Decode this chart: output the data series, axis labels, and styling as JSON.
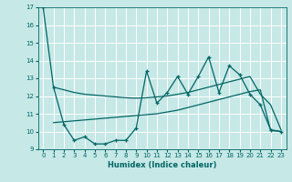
{
  "xlabel": "Humidex (Indice chaleur)",
  "xlim": [
    -0.5,
    23.5
  ],
  "ylim": [
    9,
    17
  ],
  "yticks": [
    9,
    10,
    11,
    12,
    13,
    14,
    15,
    16,
    17
  ],
  "xticks": [
    0,
    1,
    2,
    3,
    4,
    5,
    6,
    7,
    8,
    9,
    10,
    11,
    12,
    13,
    14,
    15,
    16,
    17,
    18,
    19,
    20,
    21,
    22,
    23
  ],
  "bg_color": "#c6e8e6",
  "grid_color": "#ffffff",
  "line_color": "#006666",
  "line1_x": [
    0,
    1,
    2,
    3,
    4,
    5,
    6,
    7,
    8,
    9,
    10,
    11,
    12,
    13,
    14,
    15,
    16,
    17,
    18,
    19,
    20,
    21,
    22,
    23
  ],
  "line1_y": [
    17.0,
    12.5,
    10.4,
    9.5,
    9.7,
    9.3,
    9.3,
    9.5,
    9.5,
    10.2,
    13.4,
    11.6,
    12.2,
    13.1,
    12.1,
    13.1,
    14.2,
    12.2,
    13.7,
    13.2,
    12.1,
    11.5,
    10.1,
    10.0
  ],
  "line2_x": [
    1,
    2,
    3,
    4,
    5,
    6,
    7,
    8,
    9,
    10,
    11,
    12,
    13,
    14,
    15,
    16,
    17,
    18,
    19,
    20,
    21,
    22,
    23
  ],
  "line2_y": [
    12.5,
    12.35,
    12.2,
    12.1,
    12.05,
    12.0,
    11.95,
    11.9,
    11.88,
    11.9,
    11.95,
    12.0,
    12.1,
    12.2,
    12.35,
    12.5,
    12.65,
    12.8,
    12.95,
    13.1,
    12.1,
    11.5,
    10.1
  ],
  "line3_x": [
    1,
    2,
    3,
    4,
    5,
    6,
    7,
    8,
    9,
    10,
    11,
    12,
    13,
    14,
    15,
    16,
    17,
    18,
    19,
    20,
    21,
    22,
    23
  ],
  "line3_y": [
    10.5,
    10.55,
    10.6,
    10.65,
    10.7,
    10.75,
    10.8,
    10.85,
    10.9,
    10.95,
    11.0,
    11.1,
    11.2,
    11.35,
    11.5,
    11.65,
    11.8,
    11.95,
    12.1,
    12.25,
    12.35,
    10.05,
    10.0
  ]
}
